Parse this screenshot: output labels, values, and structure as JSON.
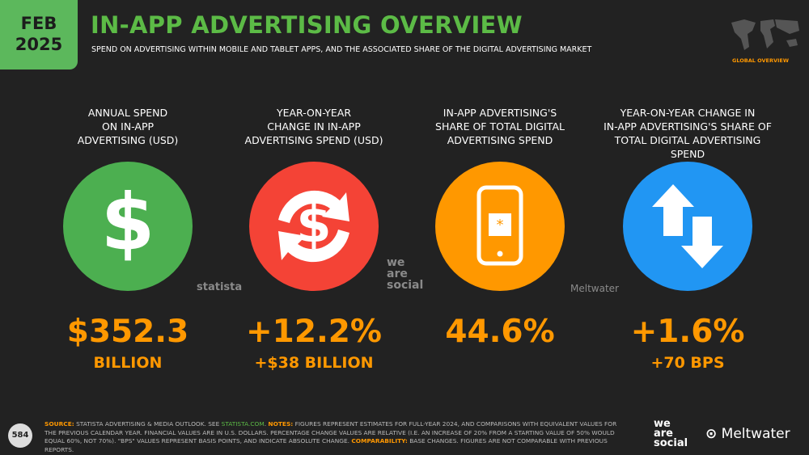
{
  "header": {
    "month": "FEB",
    "year": "2025",
    "title": "IN-APP ADVERTISING OVERVIEW",
    "subtitle": "SPEND ON ADVERTISING WITHIN MOBILE AND TABLET APPS, AND THE ASSOCIATED SHARE OF THE DIGITAL ADVERTISING MARKET",
    "map_label": "GLOBAL OVERVIEW"
  },
  "cards": [
    {
      "heading": [
        "ANNUAL SPEND",
        "ON IN-APP",
        "ADVERTISING (USD)"
      ],
      "value": "$352.3",
      "detail": "BILLION"
    },
    {
      "heading": [
        "YEAR-ON-YEAR",
        "CHANGE IN IN-APP",
        "ADVERTISING SPEND (USD)"
      ],
      "value": "+12.2%",
      "detail": "+$38 BILLION"
    },
    {
      "heading": [
        "IN-APP ADVERTISING'S",
        "SHARE OF TOTAL DIGITAL",
        "ADVERTISING SPEND"
      ],
      "value": "44.6%",
      "detail": null
    },
    {
      "heading": [
        "YEAR-ON-YEAR CHANGE IN",
        "IN-APP ADVERTISING'S SHARE OF",
        "TOTAL DIGITAL ADVERTISING SPEND"
      ],
      "value": "+1.6%",
      "detail": "+70 BPS"
    }
  ],
  "logos": {
    "statista": "statista",
    "was": [
      "we",
      "are",
      "social"
    ],
    "meltwater": "Meltwater"
  },
  "footer": {
    "page": "584",
    "segments": [
      "SOURCE:",
      " STATISTA ADVERTISING & MEDIA OUTLOOK. SEE ",
      "STATISTA.COM",
      ". ",
      "NOTES:",
      " FIGURES REPRESENT ESTIMATES FOR FULL-YEAR 2024, AND COMPARISONS WITH EQUIVALENT VALUES FOR THE PREVIOUS CALENDAR YEAR. FINANCIAL VALUES ARE IN U.S. DOLLARS. PERCENTAGE CHANGE VALUES ARE RELATIVE (I.E. AN INCREASE OF 20% FROM A STARTING VALUE OF 50% WOULD EQUAL 60%, NOT 70%). \"BPS\" VALUES REPRESENT BASIS POINTS, AND INDICATE ABSOLUTE CHANGE. ",
      "COMPARABILITY:",
      " BASE CHANGES. FIGURES ARE NOT COMPARABLE WITH PREVIOUS REPORTS."
    ]
  }
}
